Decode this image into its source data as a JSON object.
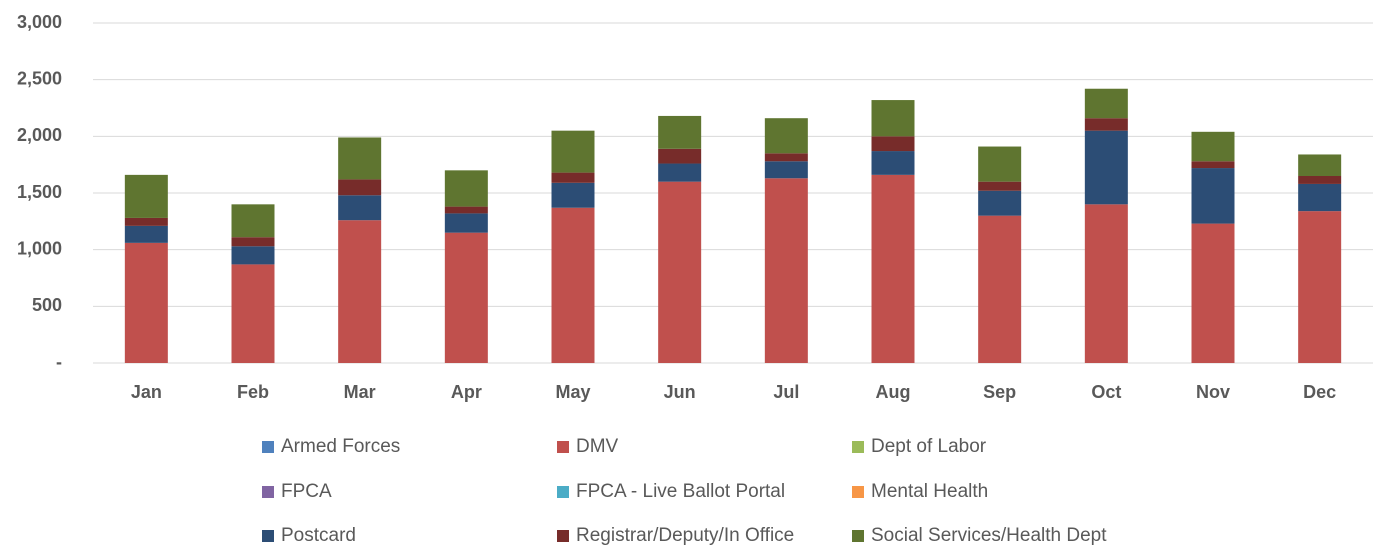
{
  "chart_data": {
    "type": "bar",
    "stacked": true,
    "categories": [
      "Jan",
      "Feb",
      "Mar",
      "Apr",
      "May",
      "Jun",
      "Jul",
      "Aug",
      "Sep",
      "Oct",
      "Nov",
      "Dec"
    ],
    "series": [
      {
        "name": "Armed Forces",
        "color": "#4f81bd",
        "values": [
          0,
          0,
          0,
          0,
          0,
          0,
          0,
          0,
          0,
          0,
          0,
          0
        ]
      },
      {
        "name": "DMV",
        "color": "#c0504d",
        "values": [
          1060,
          870,
          1260,
          1150,
          1370,
          1600,
          1630,
          1660,
          1300,
          1400,
          1230,
          1340
        ]
      },
      {
        "name": "Dept of Labor",
        "color": "#9bbb59",
        "values": [
          0,
          0,
          0,
          0,
          0,
          0,
          0,
          0,
          0,
          0,
          0,
          0
        ]
      },
      {
        "name": "FPCA",
        "color": "#8064a2",
        "values": [
          0,
          0,
          0,
          0,
          0,
          0,
          0,
          0,
          0,
          0,
          0,
          0
        ]
      },
      {
        "name": "FPCA - Live Ballot Portal",
        "color": "#4bacc6",
        "values": [
          0,
          0,
          0,
          0,
          0,
          0,
          0,
          0,
          0,
          0,
          0,
          0
        ]
      },
      {
        "name": "Mental Health",
        "color": "#f79646",
        "values": [
          0,
          0,
          0,
          0,
          0,
          0,
          0,
          0,
          0,
          0,
          0,
          0
        ]
      },
      {
        "name": "Postcard",
        "color": "#2c4d75",
        "values": [
          150,
          160,
          220,
          170,
          220,
          160,
          150,
          210,
          220,
          650,
          490,
          240
        ]
      },
      {
        "name": "Registrar/Deputy/In Office",
        "color": "#772c2a",
        "values": [
          70,
          80,
          140,
          60,
          90,
          130,
          70,
          130,
          80,
          110,
          60,
          70
        ]
      },
      {
        "name": "Social Services/Health Dept",
        "color": "#5f7530",
        "values": [
          380,
          290,
          370,
          320,
          370,
          290,
          310,
          320,
          310,
          260,
          260,
          190
        ]
      }
    ],
    "ylim": [
      0,
      3000
    ],
    "yticks": [
      {
        "value": 0,
        "label": "-"
      },
      {
        "value": 500,
        "label": "500"
      },
      {
        "value": 1000,
        "label": "1,000"
      },
      {
        "value": 1500,
        "label": "1,500"
      },
      {
        "value": 2000,
        "label": "2,000"
      },
      {
        "value": 2500,
        "label": "2,500"
      },
      {
        "value": 3000,
        "label": "3,000"
      }
    ],
    "grid": true,
    "legend": "bottom"
  }
}
